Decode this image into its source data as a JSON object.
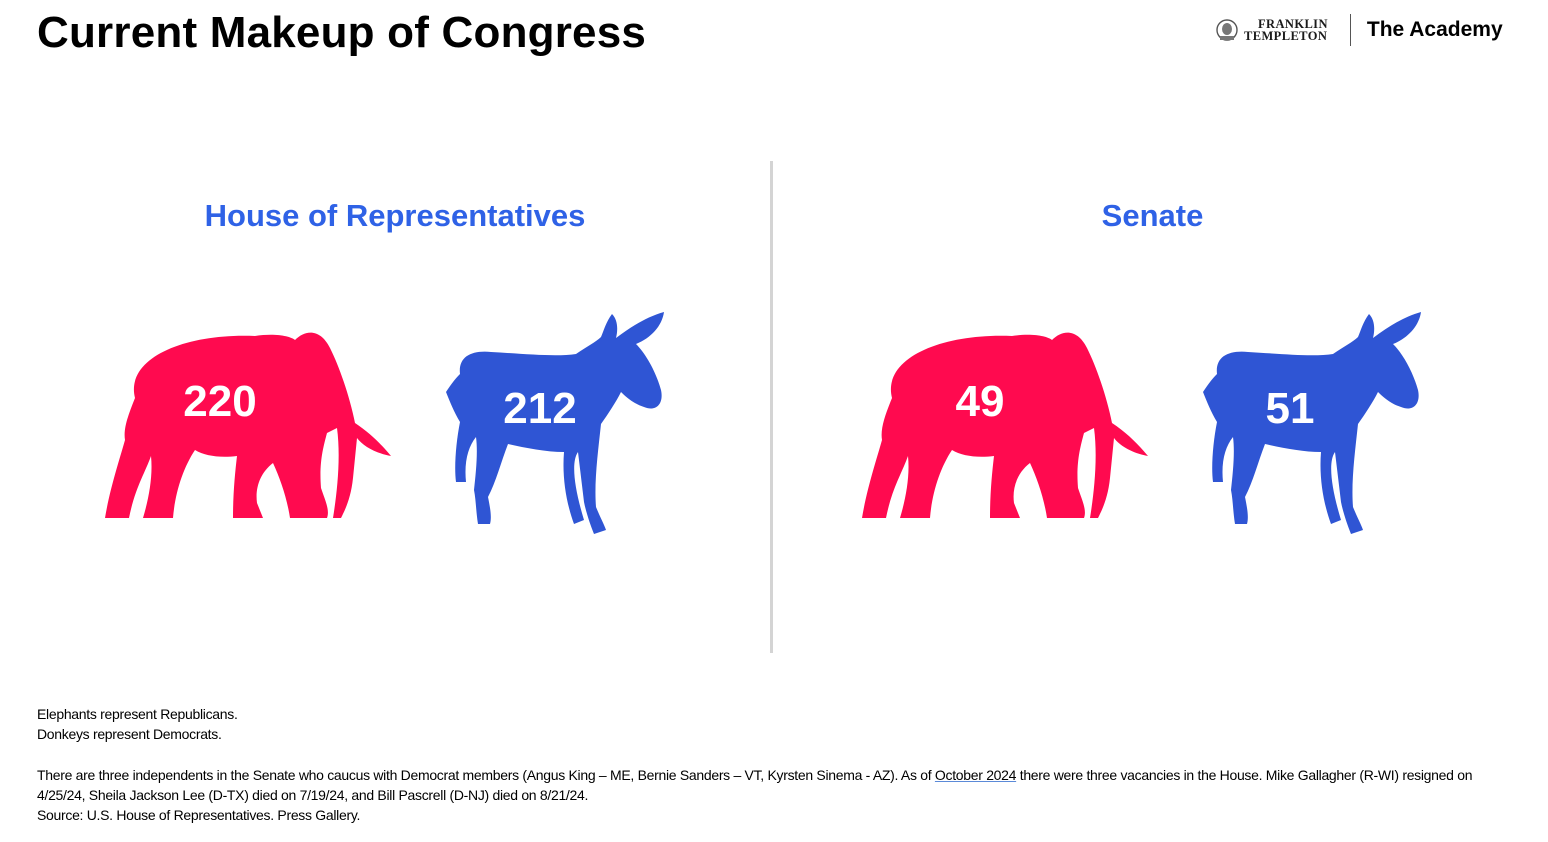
{
  "title": "Current Makeup of Congress",
  "brand": {
    "logo_line1": "FRANKLIN",
    "logo_line2": "TEMPLETON",
    "academy": "The Academy"
  },
  "house": {
    "title": "House of Representatives",
    "republicans": "220",
    "democrats": "212"
  },
  "senate": {
    "title": "Senate",
    "republicans": "49",
    "democrats": "51"
  },
  "colors": {
    "republican": "#ff0a4f",
    "democrat": "#2f55d4",
    "heading": "#2f62e6"
  },
  "icons": [
    "elephant-icon",
    "donkey-icon"
  ],
  "notes": {
    "line1": "Elephants represent Republicans.",
    "line2": "Donkeys represent Democrats.",
    "para_before_link": "There are three independents in the Senate who caucus with Democrat members (Angus King – ME, Bernie Sanders – VT, Kyrsten Sinema - AZ). As of ",
    "para_link": "October 2024",
    "para_after_link": " there were three vacancies in the House. Mike Gallagher (R-WI) resigned on 4/25/24, Sheila Jackson Lee (D-TX) died on 7/19/24, and Bill Pascrell (D-NJ) died on 8/21/24.",
    "source": "Source: U.S. House of Representatives. Press Gallery."
  }
}
